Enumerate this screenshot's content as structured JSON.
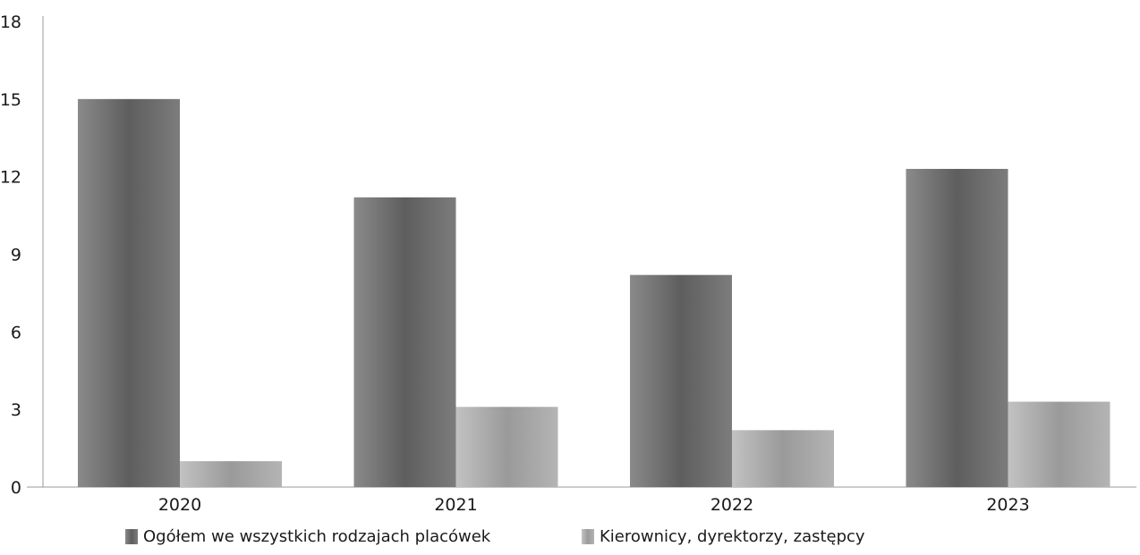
{
  "chart_data": {
    "type": "bar",
    "categories": [
      "2020",
      "2021",
      "2022",
      "2023"
    ],
    "series": [
      {
        "name": "Ogółem we wszystkich rodzajach placówek",
        "values": [
          15.0,
          11.2,
          8.2,
          12.3
        ],
        "color": "#6e6e6e"
      },
      {
        "name": "Kierownicy, dyrektorzy, zastępcy",
        "values": [
          1.0,
          3.1,
          2.2,
          3.3
        ],
        "color": "#a9a9a9"
      }
    ],
    "y_ticks": [
      "0",
      "3",
      "6",
      "9",
      "12",
      "15",
      "18"
    ],
    "ylim": [
      0,
      18
    ],
    "title": "",
    "xlabel": "",
    "ylabel": "",
    "grid": false,
    "legend_position": "bottom"
  }
}
